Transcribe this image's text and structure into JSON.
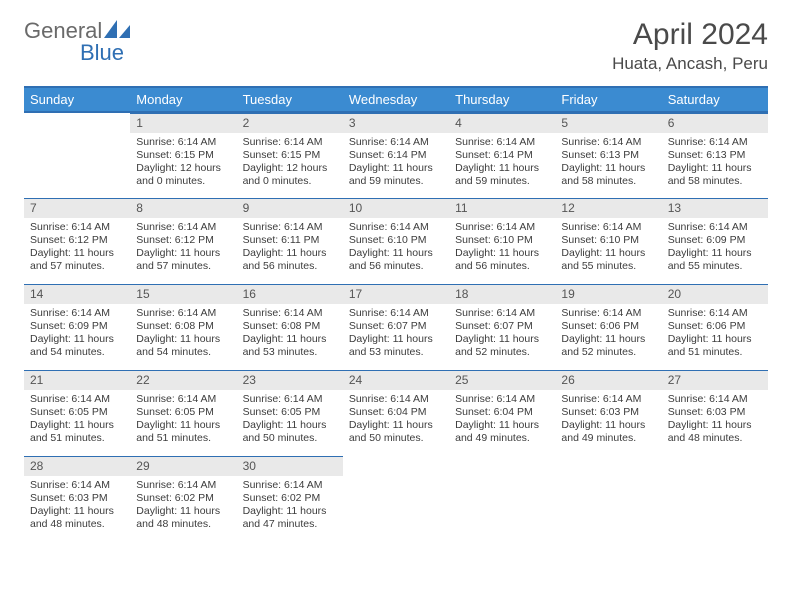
{
  "logo": {
    "t1": "General",
    "t2": "Blue",
    "shape_fill": "#2f6fb3"
  },
  "title": "April 2024",
  "location": "Huata, Ancash, Peru",
  "header_bg": "#3b8bd1",
  "header_border": "#2f6fb3",
  "daynum_bg": "#e9e9e9",
  "text_color": "#3c3c3c",
  "weekdays": [
    "Sunday",
    "Monday",
    "Tuesday",
    "Wednesday",
    "Thursday",
    "Friday",
    "Saturday"
  ],
  "weeks": [
    [
      null,
      {
        "n": "1",
        "sr": "Sunrise: 6:14 AM",
        "ss": "Sunset: 6:15 PM",
        "d1": "Daylight: 12 hours",
        "d2": "and 0 minutes."
      },
      {
        "n": "2",
        "sr": "Sunrise: 6:14 AM",
        "ss": "Sunset: 6:15 PM",
        "d1": "Daylight: 12 hours",
        "d2": "and 0 minutes."
      },
      {
        "n": "3",
        "sr": "Sunrise: 6:14 AM",
        "ss": "Sunset: 6:14 PM",
        "d1": "Daylight: 11 hours",
        "d2": "and 59 minutes."
      },
      {
        "n": "4",
        "sr": "Sunrise: 6:14 AM",
        "ss": "Sunset: 6:14 PM",
        "d1": "Daylight: 11 hours",
        "d2": "and 59 minutes."
      },
      {
        "n": "5",
        "sr": "Sunrise: 6:14 AM",
        "ss": "Sunset: 6:13 PM",
        "d1": "Daylight: 11 hours",
        "d2": "and 58 minutes."
      },
      {
        "n": "6",
        "sr": "Sunrise: 6:14 AM",
        "ss": "Sunset: 6:13 PM",
        "d1": "Daylight: 11 hours",
        "d2": "and 58 minutes."
      }
    ],
    [
      {
        "n": "7",
        "sr": "Sunrise: 6:14 AM",
        "ss": "Sunset: 6:12 PM",
        "d1": "Daylight: 11 hours",
        "d2": "and 57 minutes."
      },
      {
        "n": "8",
        "sr": "Sunrise: 6:14 AM",
        "ss": "Sunset: 6:12 PM",
        "d1": "Daylight: 11 hours",
        "d2": "and 57 minutes."
      },
      {
        "n": "9",
        "sr": "Sunrise: 6:14 AM",
        "ss": "Sunset: 6:11 PM",
        "d1": "Daylight: 11 hours",
        "d2": "and 56 minutes."
      },
      {
        "n": "10",
        "sr": "Sunrise: 6:14 AM",
        "ss": "Sunset: 6:10 PM",
        "d1": "Daylight: 11 hours",
        "d2": "and 56 minutes."
      },
      {
        "n": "11",
        "sr": "Sunrise: 6:14 AM",
        "ss": "Sunset: 6:10 PM",
        "d1": "Daylight: 11 hours",
        "d2": "and 56 minutes."
      },
      {
        "n": "12",
        "sr": "Sunrise: 6:14 AM",
        "ss": "Sunset: 6:10 PM",
        "d1": "Daylight: 11 hours",
        "d2": "and 55 minutes."
      },
      {
        "n": "13",
        "sr": "Sunrise: 6:14 AM",
        "ss": "Sunset: 6:09 PM",
        "d1": "Daylight: 11 hours",
        "d2": "and 55 minutes."
      }
    ],
    [
      {
        "n": "14",
        "sr": "Sunrise: 6:14 AM",
        "ss": "Sunset: 6:09 PM",
        "d1": "Daylight: 11 hours",
        "d2": "and 54 minutes."
      },
      {
        "n": "15",
        "sr": "Sunrise: 6:14 AM",
        "ss": "Sunset: 6:08 PM",
        "d1": "Daylight: 11 hours",
        "d2": "and 54 minutes."
      },
      {
        "n": "16",
        "sr": "Sunrise: 6:14 AM",
        "ss": "Sunset: 6:08 PM",
        "d1": "Daylight: 11 hours",
        "d2": "and 53 minutes."
      },
      {
        "n": "17",
        "sr": "Sunrise: 6:14 AM",
        "ss": "Sunset: 6:07 PM",
        "d1": "Daylight: 11 hours",
        "d2": "and 53 minutes."
      },
      {
        "n": "18",
        "sr": "Sunrise: 6:14 AM",
        "ss": "Sunset: 6:07 PM",
        "d1": "Daylight: 11 hours",
        "d2": "and 52 minutes."
      },
      {
        "n": "19",
        "sr": "Sunrise: 6:14 AM",
        "ss": "Sunset: 6:06 PM",
        "d1": "Daylight: 11 hours",
        "d2": "and 52 minutes."
      },
      {
        "n": "20",
        "sr": "Sunrise: 6:14 AM",
        "ss": "Sunset: 6:06 PM",
        "d1": "Daylight: 11 hours",
        "d2": "and 51 minutes."
      }
    ],
    [
      {
        "n": "21",
        "sr": "Sunrise: 6:14 AM",
        "ss": "Sunset: 6:05 PM",
        "d1": "Daylight: 11 hours",
        "d2": "and 51 minutes."
      },
      {
        "n": "22",
        "sr": "Sunrise: 6:14 AM",
        "ss": "Sunset: 6:05 PM",
        "d1": "Daylight: 11 hours",
        "d2": "and 51 minutes."
      },
      {
        "n": "23",
        "sr": "Sunrise: 6:14 AM",
        "ss": "Sunset: 6:05 PM",
        "d1": "Daylight: 11 hours",
        "d2": "and 50 minutes."
      },
      {
        "n": "24",
        "sr": "Sunrise: 6:14 AM",
        "ss": "Sunset: 6:04 PM",
        "d1": "Daylight: 11 hours",
        "d2": "and 50 minutes."
      },
      {
        "n": "25",
        "sr": "Sunrise: 6:14 AM",
        "ss": "Sunset: 6:04 PM",
        "d1": "Daylight: 11 hours",
        "d2": "and 49 minutes."
      },
      {
        "n": "26",
        "sr": "Sunrise: 6:14 AM",
        "ss": "Sunset: 6:03 PM",
        "d1": "Daylight: 11 hours",
        "d2": "and 49 minutes."
      },
      {
        "n": "27",
        "sr": "Sunrise: 6:14 AM",
        "ss": "Sunset: 6:03 PM",
        "d1": "Daylight: 11 hours",
        "d2": "and 48 minutes."
      }
    ],
    [
      {
        "n": "28",
        "sr": "Sunrise: 6:14 AM",
        "ss": "Sunset: 6:03 PM",
        "d1": "Daylight: 11 hours",
        "d2": "and 48 minutes."
      },
      {
        "n": "29",
        "sr": "Sunrise: 6:14 AM",
        "ss": "Sunset: 6:02 PM",
        "d1": "Daylight: 11 hours",
        "d2": "and 48 minutes."
      },
      {
        "n": "30",
        "sr": "Sunrise: 6:14 AM",
        "ss": "Sunset: 6:02 PM",
        "d1": "Daylight: 11 hours",
        "d2": "and 47 minutes."
      },
      null,
      null,
      null,
      null
    ]
  ]
}
